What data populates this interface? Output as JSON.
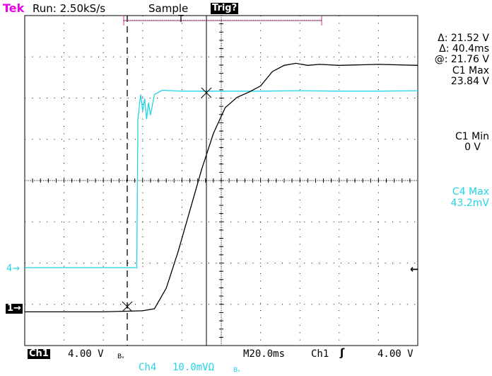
{
  "status_bar": {
    "brand": "Tek",
    "run_status": "Run: 2.50kS/s",
    "acquire_mode": "Sample",
    "trigger_state": "Trig?"
  },
  "readouts": {
    "delta_v": "Δ: 21.52 V",
    "delta_t": "Δ: 40.4ms",
    "at_v": "@: 21.76 V",
    "c1_max_label": "C1 Max",
    "c1_max_value": "23.84 V",
    "c1_min_label": "C1 Min",
    "c1_min_value": "0 V",
    "c4_max_label": "C4 Max",
    "c4_max_value": "43.2mV"
  },
  "markers": {
    "ch4_marker": "4→",
    "ch1_marker": "1→",
    "trigger_marker": "T",
    "trigger_level_arrow": "←"
  },
  "bottom_bar": {
    "ch1_label": "Ch1",
    "ch1_scale": "4.00 V",
    "ch1_bw": "Bᵥ",
    "timebase": "M20.0ms",
    "trig_source": "Ch1",
    "trig_slope": "ʃ",
    "trig_level": "4.00 V",
    "ch4_label": "Ch4",
    "ch4_scale": "10.0mVΩ",
    "ch4_bw": "Bᵥ"
  },
  "colors": {
    "ch1": "#000000",
    "ch4": "#22d3e6",
    "brand": "#e800e8",
    "grid": "#000000"
  },
  "chart_data": {
    "type": "line",
    "xlabel": "",
    "ylabel": "",
    "series": [
      {
        "name": "C1",
        "x_div": [
          0,
          1.0,
          2.0,
          3.0,
          3.3,
          3.6,
          3.9,
          4.2,
          4.5,
          4.8,
          5.1,
          5.4,
          5.7,
          6.0,
          6.3,
          6.6,
          6.9,
          7.2,
          7.5,
          8.0,
          9.0,
          10.0
        ],
        "volts": [
          -0.3,
          -0.3,
          -0.3,
          -0.2,
          0.0,
          2.0,
          5.5,
          9.5,
          13.5,
          17.0,
          19.5,
          20.5,
          21.0,
          21.6,
          23.0,
          23.6,
          23.8,
          23.6,
          23.7,
          23.6,
          23.7,
          23.6
        ]
      },
      {
        "name": "C4",
        "x_div": [
          0,
          1.0,
          2.0,
          2.85,
          2.88,
          2.95,
          3.0,
          3.05,
          3.1,
          3.15,
          3.2,
          3.3,
          3.5,
          4.0,
          5.0,
          6.0,
          7.0,
          8.0,
          9.0,
          10.0
        ],
        "millivolts": [
          0.0,
          0.0,
          0.0,
          0.0,
          36.0,
          42.0,
          38.0,
          41.0,
          36.0,
          40.0,
          37.0,
          42.0,
          43.0,
          42.8,
          42.8,
          42.8,
          42.9,
          42.8,
          42.8,
          42.9
        ]
      }
    ],
    "ch1_volts_per_div": 4.0,
    "ch4_mv_per_div": 10.0,
    "time_per_div_ms": 20.0,
    "cursor_delta_v": 21.52,
    "cursor_delta_t_ms": 40.4,
    "cursor_at_v": 21.76
  }
}
